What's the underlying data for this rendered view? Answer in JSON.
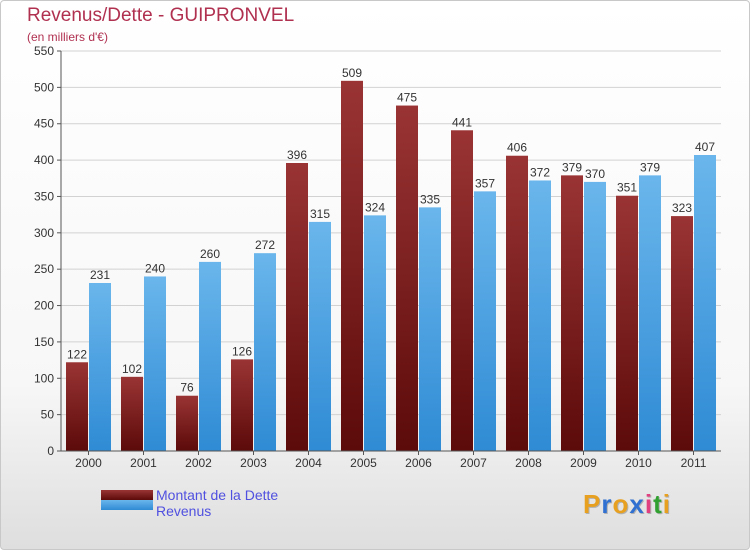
{
  "header": {
    "title": "Revenus/Dette - GUIPRONVEL",
    "subtitle": "(en milliers d'€)"
  },
  "legend": {
    "dette_label": "Montant de la Dette",
    "revenus_label": "Revenus"
  },
  "logo": {
    "text": "Proxiti",
    "letters": [
      {
        "ch": "P",
        "color": "#e8a020"
      },
      {
        "ch": "r",
        "color": "#3070d0"
      },
      {
        "ch": "o",
        "color": "#e8a020"
      },
      {
        "ch": "x",
        "color": "#3070d0"
      },
      {
        "ch": "i",
        "color": "#e04080"
      },
      {
        "ch": "t",
        "color": "#30a030"
      },
      {
        "ch": "i",
        "color": "#e8a020"
      }
    ]
  },
  "colors": {
    "dette_top": "#9a3434",
    "dette_bottom": "#5c0a0a",
    "revenus_top": "#6ab6ec",
    "revenus_bottom": "#2f8bd4",
    "title": "#b03050",
    "legend_text": "#5050e0"
  },
  "chart_data": {
    "type": "bar",
    "title": "Revenus/Dette - GUIPRONVEL",
    "subtitle": "(en milliers d'€)",
    "xlabel": "",
    "ylabel": "",
    "ylim": [
      0,
      550
    ],
    "yticks": [
      0,
      50,
      100,
      150,
      200,
      250,
      300,
      350,
      400,
      450,
      500,
      550
    ],
    "grid": true,
    "legend_position": "bottom-left",
    "categories": [
      "2000",
      "2001",
      "2002",
      "2003",
      "2004",
      "2005",
      "2006",
      "2007",
      "2008",
      "2009",
      "2010",
      "2011"
    ],
    "series": [
      {
        "name": "Montant de la Dette",
        "values": [
          122,
          102,
          76,
          126,
          396,
          509,
          475,
          441,
          406,
          379,
          351,
          323
        ]
      },
      {
        "name": "Revenus",
        "values": [
          231,
          240,
          260,
          272,
          315,
          324,
          335,
          357,
          372,
          370,
          379,
          407
        ]
      }
    ]
  }
}
